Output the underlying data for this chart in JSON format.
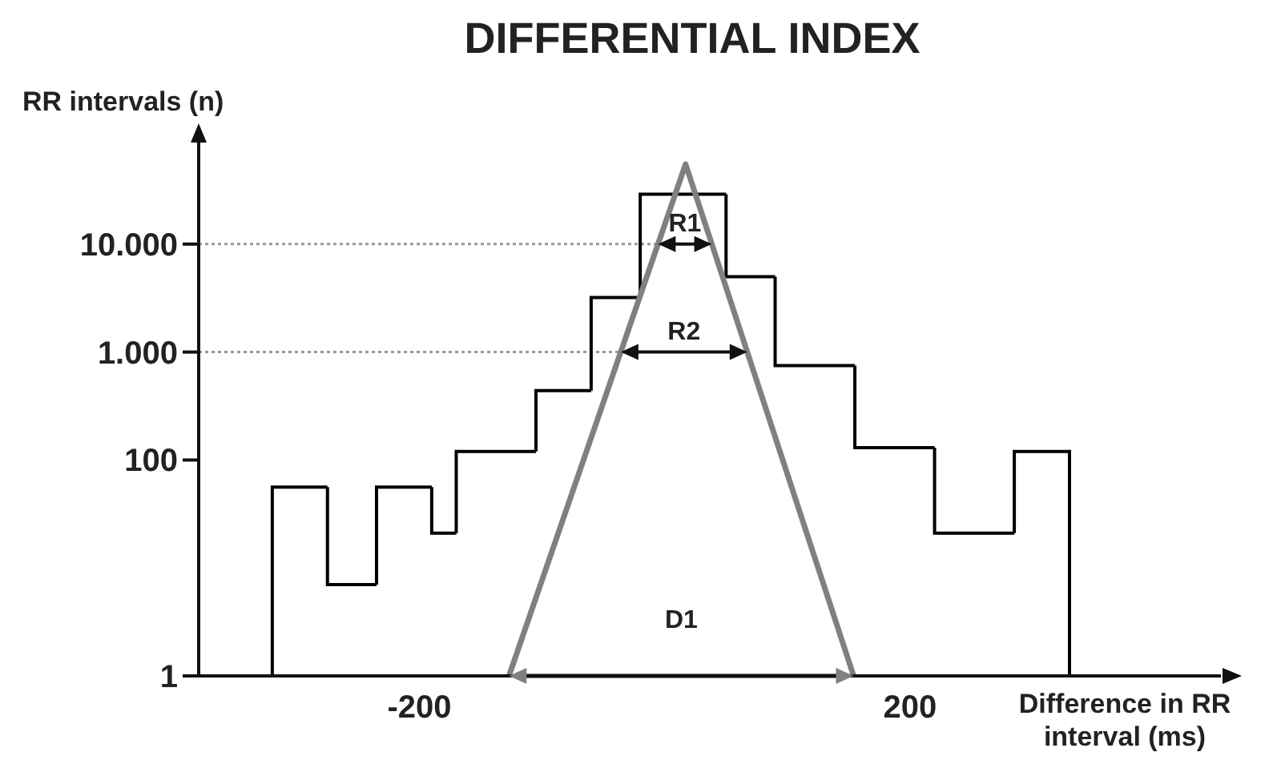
{
  "chart_data": {
    "type": "histogram",
    "title": "DIFFERENTIAL INDEX",
    "xlabel": "Difference in RR interval (ms)",
    "ylabel": "RR intervals (n)",
    "log": "y",
    "grid": false,
    "xlim": [
      -380,
      460
    ],
    "xticks": [
      -200,
      200
    ],
    "ylim": [
      1,
      100000
    ],
    "yticks": [
      1,
      100,
      {
        "value": 1000,
        "label": "1.000"
      },
      {
        "value": 10000,
        "label": "10.000"
      }
    ],
    "series": [
      {
        "type": "histogram",
        "color": "#000000",
        "bins": [
          -320,
          -275,
          -235,
          -190,
          -170,
          -105,
          -60,
          -20,
          50,
          90,
          155,
          220,
          285,
          330
        ],
        "values": [
          56,
          7,
          56,
          21,
          120,
          440,
          3200,
          29000,
          5000,
          750,
          130,
          21,
          120
        ]
      },
      {
        "type": "line",
        "color": "#808080",
        "x": [
          -127,
          17,
          154
        ],
        "values": [
          1,
          55000,
          1
        ]
      }
    ],
    "ref_lines": [
      {
        "axis": "y",
        "value": 10000,
        "label": "R1",
        "color": "#999999",
        "line_style": "dotted"
      },
      {
        "axis": "y",
        "value": 1000,
        "label": "R2",
        "color": "#999999",
        "line_style": "dotted"
      },
      {
        "axis": "y",
        "value": 1,
        "label": "D1",
        "color": "#808080",
        "line_style": "solid"
      }
    ]
  }
}
